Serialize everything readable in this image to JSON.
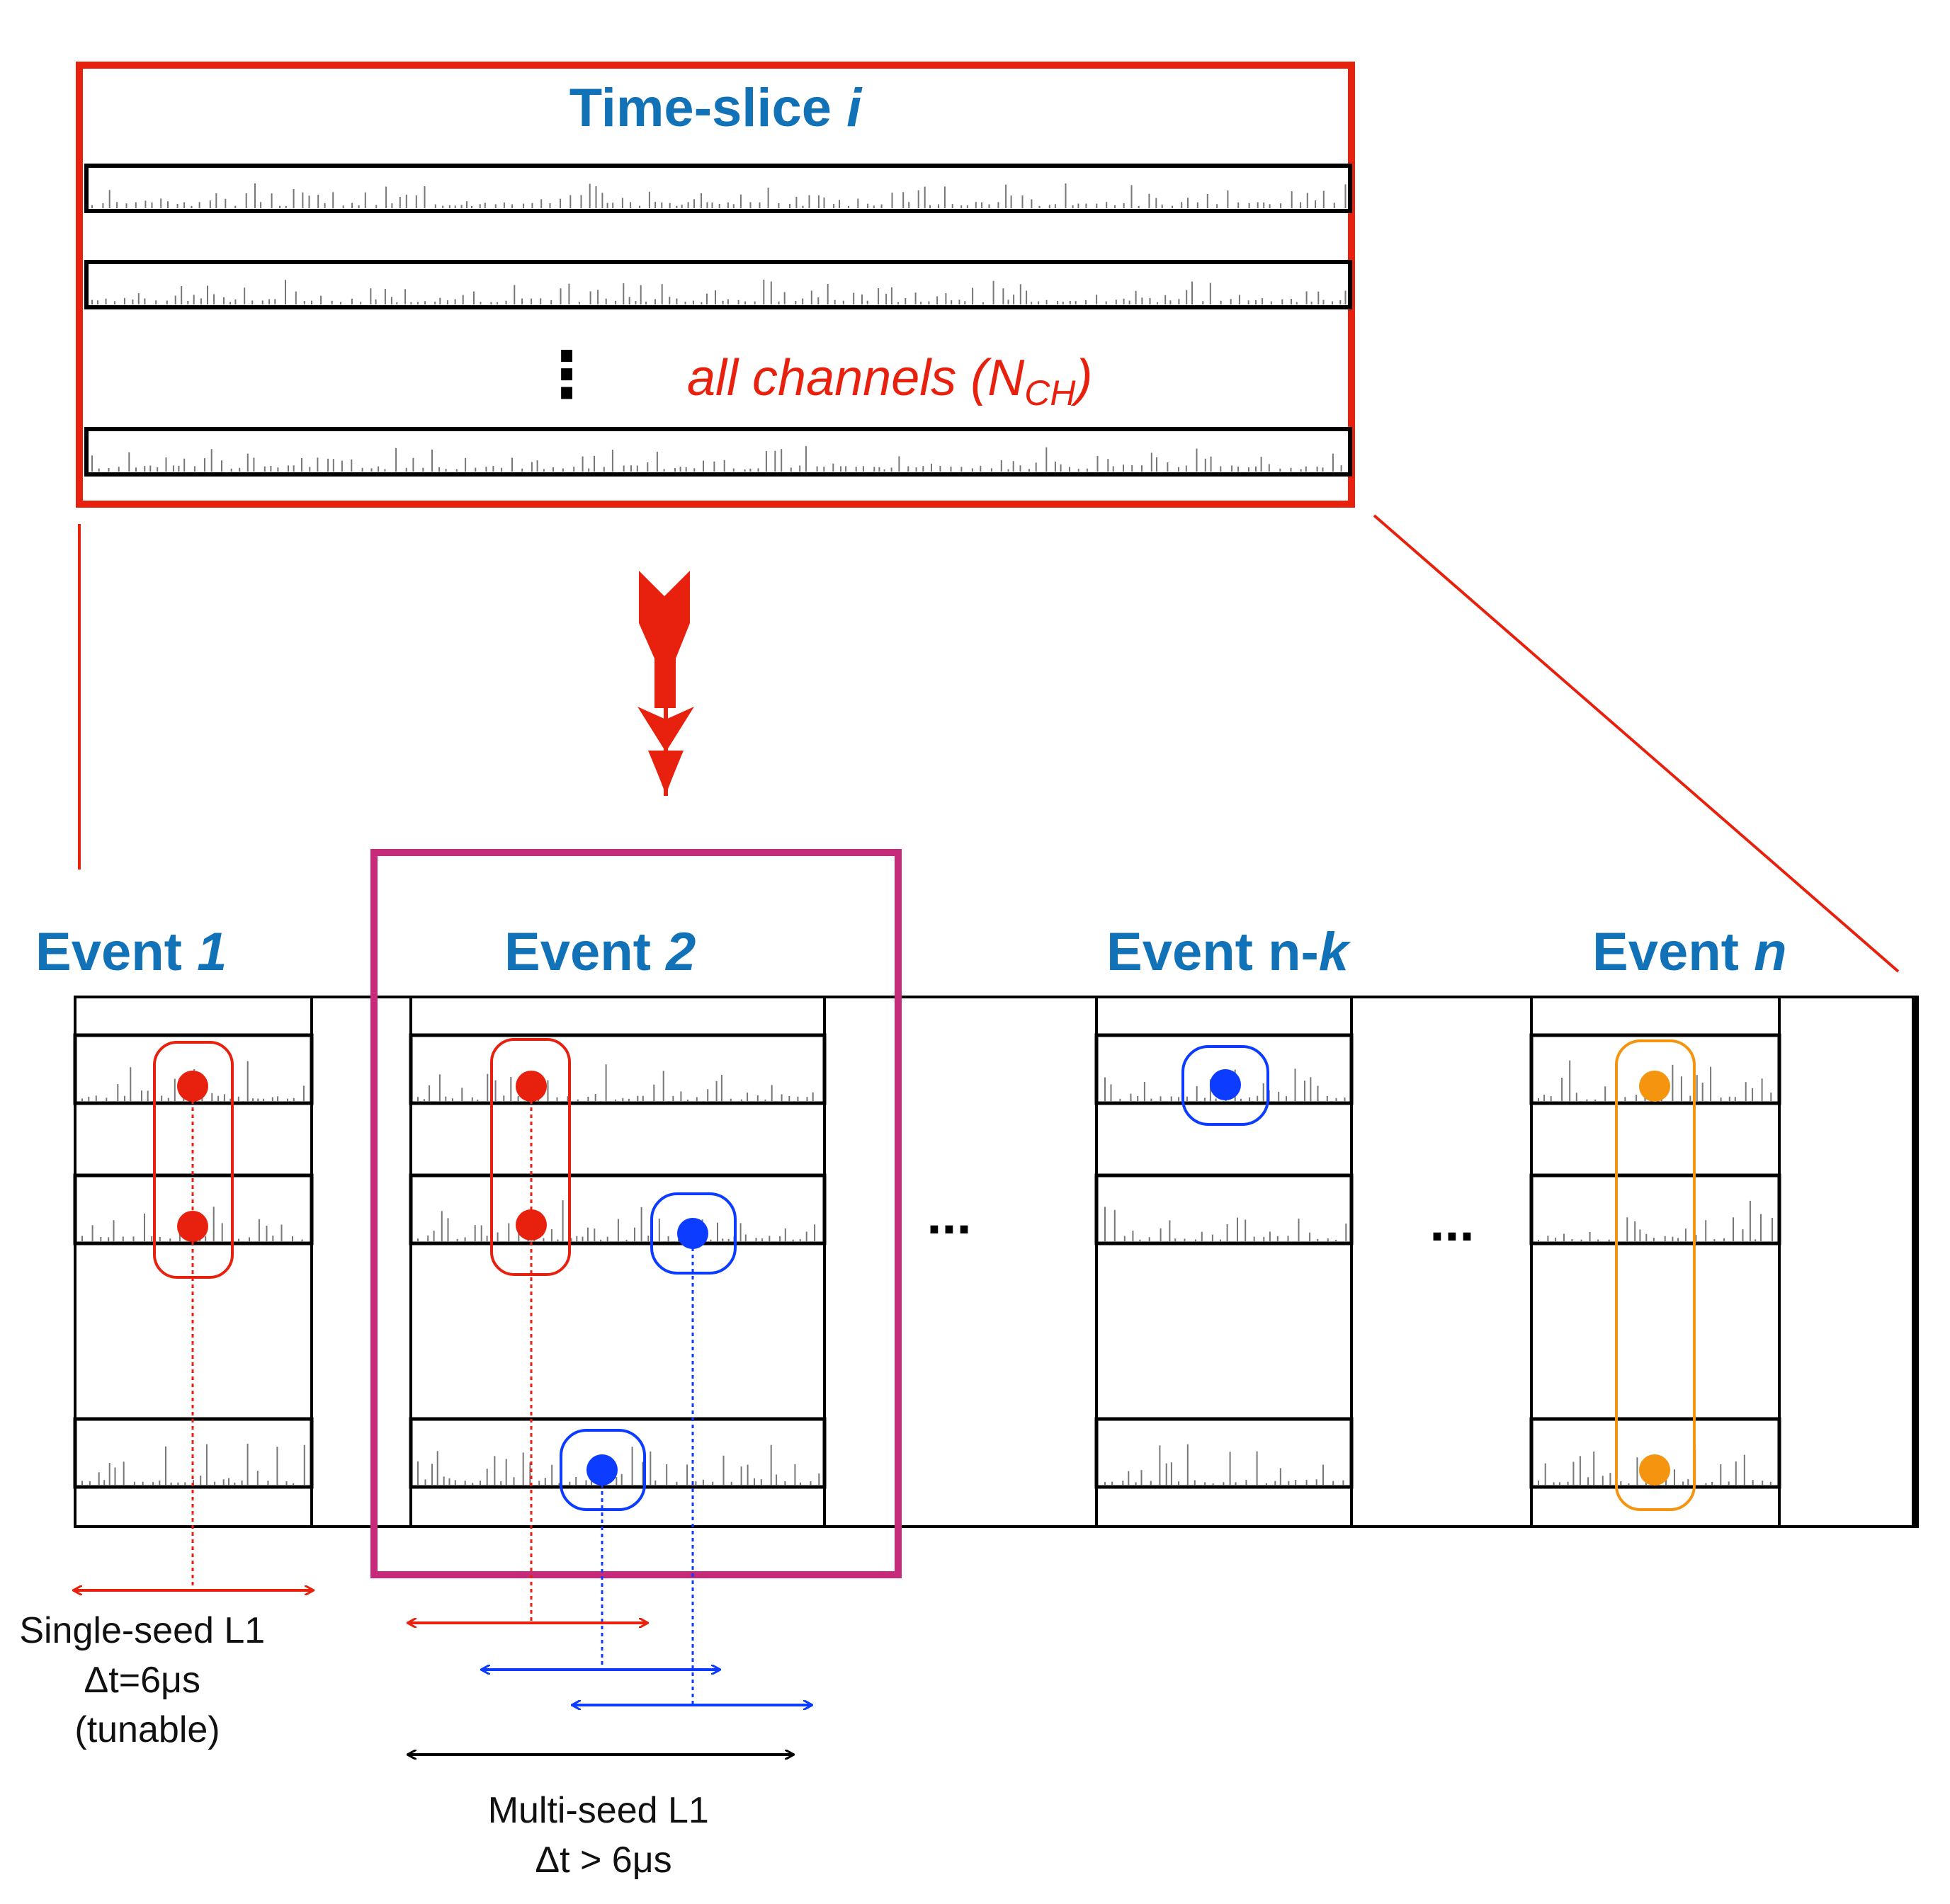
{
  "timeslice": {
    "title": "Time-slice",
    "title_var": "i",
    "channels_text": "all channels (N",
    "channels_sub": "CH",
    "channels_close": ")",
    "vdots": "⋮"
  },
  "events": [
    {
      "label": "Event ",
      "var": "1"
    },
    {
      "label": "Event ",
      "var": "2"
    },
    {
      "label": "Event n-",
      "var": "k"
    },
    {
      "label": "Event ",
      "var": "n"
    }
  ],
  "ellipsis_1": "...",
  "ellipsis_2": "...",
  "single_seed": {
    "line1": "Single-seed L1",
    "line2": "Δt=6μs",
    "line3": "(tunable)"
  },
  "multi_seed": {
    "line1": "Multi-seed L1",
    "line2": "Δt > 6μs"
  },
  "colors": {
    "red": "#e8210f",
    "blue": "#1272b8",
    "seed_blue": "#0b3cff",
    "magenta": "#c72a7b",
    "orange": "#f4940f",
    "black": "#000000",
    "waveform": "#777777"
  },
  "icons": {
    "big_arrow": "down-arrow-icon",
    "seeds": "circle-dot-icon"
  }
}
